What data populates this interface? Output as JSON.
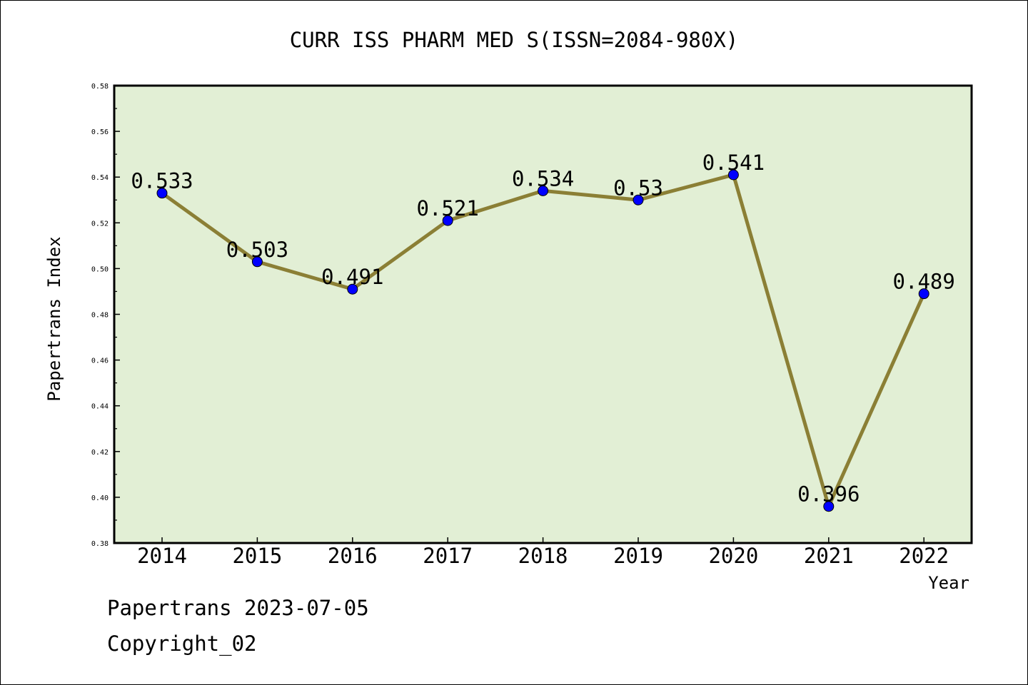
{
  "chart_data": {
    "type": "line",
    "title": "CURR ISS PHARM MED S(ISSN=2084-980X)",
    "xlabel": "Year",
    "ylabel": "Papertrans Index",
    "categories": [
      "2014",
      "2015",
      "2016",
      "2017",
      "2018",
      "2019",
      "2020",
      "2021",
      "2022"
    ],
    "series": [
      {
        "values": [
          0.533,
          0.503,
          0.491,
          0.521,
          0.534,
          0.53,
          0.541,
          0.396,
          0.489
        ],
        "labels": [
          "0.533",
          "0.503",
          "0.491",
          "0.521",
          "0.534",
          "0.53",
          "0.541",
          "0.396",
          "0.489"
        ]
      }
    ],
    "ylim": [
      0.38,
      0.58
    ],
    "yticks": [
      "0.38",
      "0.40",
      "0.42",
      "0.44",
      "0.46",
      "0.48",
      "0.50",
      "0.52",
      "0.54",
      "0.56",
      "0.58"
    ],
    "grid": false,
    "colors": {
      "plot_background": "#e2efd5",
      "line": "#8b7f35",
      "marker": "#0000ff"
    }
  },
  "footer": {
    "source": "Papertrans 2023-07-05",
    "copyright": "Copyright_02"
  }
}
